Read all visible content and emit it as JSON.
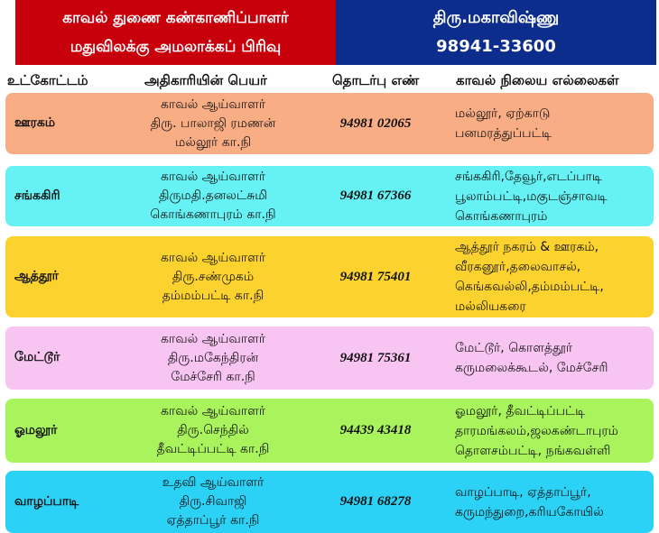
{
  "header": {
    "left_line1": "காவல் துணை கண்காணிப்பாளர்",
    "left_line2": "மதுவிலக்கு அமலாக்கப் பிரிவு",
    "right_line1": "திரு.மகாவிஷ்ணு",
    "right_line2": "98941-33600",
    "left_color": "#c8000c",
    "right_color": "#0c2d8c"
  },
  "columns": [
    "உட்கோட்டம்",
    "அதிகாரியின் பெயர்",
    "தொடர்பு எண்",
    "காவல் நிலைய எல்லைகள்"
  ],
  "rows": [
    {
      "subdivision": "ஊரகம்",
      "officer": [
        "காவல் ஆய்வாளர்",
        "திரு. பாலாஜி ரமணன்",
        "மல்லூர் கா.நி"
      ],
      "phone": "94981 02065",
      "areas": [
        "மல்லூர், ஏற்காடு",
        "பனமரத்துப்பட்டி"
      ],
      "color": "#f9ad84"
    },
    {
      "subdivision": "சங்ககிரி",
      "officer": [
        "காவல் ஆய்வாளர்",
        "திருமதி.தனலட்சுமி",
        "கொங்கணாபுரம் கா.நி"
      ],
      "phone": "94981 67366",
      "areas": [
        "சங்ககிரி,தேவூர்,எடப்பாடி",
        "பூலாம்பட்டி,மகுடஞ்சாவடி",
        "கொங்கணாபுரம்"
      ],
      "color": "#66f2f4"
    },
    {
      "subdivision": "ஆத்தூர்",
      "officer": [
        "காவல் ஆய்வாளர்",
        "திரு.சண்முகம்",
        "தம்மம்பட்டி கா.நி"
      ],
      "phone": "94981 75401",
      "areas": [
        "ஆத்தூர் நகரம் & ஊரகம்,",
        "வீரகனூர்,தலைவாசல்,",
        "கெங்கவல்லி,தம்மம்பட்டி,",
        "மல்லியகரை"
      ],
      "color": "#fcd22e"
    },
    {
      "subdivision": "மேட்டூர்",
      "officer": [
        "காவல் ஆய்வாளர்",
        "திரு.மகேந்திரன்",
        "மேச்சேரி கா.நி"
      ],
      "phone": "94981 75361",
      "areas": [
        "மேட்டூர், கொளத்தூர்",
        "கருமலைக்கூடல், மேச்சேரி"
      ],
      "color": "#f8c4f2"
    },
    {
      "subdivision": "ஓமலூர்",
      "officer": [
        "காவல் ஆய்வாளர்",
        "திரு.செந்தில்",
        "தீவட்டிப்பட்டி கா.நி"
      ],
      "phone": "94439 43418",
      "areas": [
        "ஓமலூர், தீவட்டிப்பட்டி",
        "தாரமங்கலம்,ஜலகண்டாபுரம்",
        "தொளசம்பட்டி, நங்கவள்ளி"
      ],
      "color": "#a9f35c"
    },
    {
      "subdivision": "வாழப்பாடி",
      "officer": [
        "உதவி ஆய்வாளர்",
        "திரு.சிவாஜி",
        "ஏத்தாப்பூர் கா.நி"
      ],
      "phone": "94981 68278",
      "areas": [
        "வாழப்பாடி, ஏத்தாப்பூர்,",
        "கருமந்துறை,கரியகோயில்"
      ],
      "color": "#2cd2f6"
    }
  ]
}
